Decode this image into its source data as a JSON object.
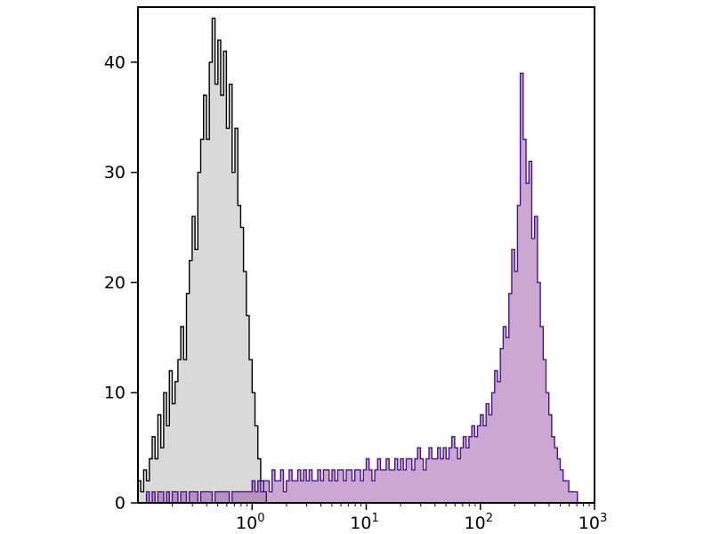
{
  "colors": {
    "background": "#ffffff",
    "axis": "#000000",
    "gray_series_stroke": "#000000",
    "gray_series_fill": "#d9d9d9",
    "purple_series_stroke": "#4a1190",
    "purple_series_fill": "#8b3f9b"
  },
  "chart_data": {
    "type": "area",
    "subtype": "flow-cytometry-overlay-histogram",
    "title": "",
    "xlabel": "",
    "ylabel": "",
    "x_scale": "log10",
    "x_range_log10": [
      -1,
      3
    ],
    "y_range": [
      0,
      45
    ],
    "grid": false,
    "legend": "none",
    "bins": {
      "start_log10": -1,
      "step_log10": 0.025,
      "count": 160
    },
    "x_ticks": [
      {
        "log10": 0,
        "label_base": "10",
        "label_exp": "0"
      },
      {
        "log10": 1,
        "label_base": "10",
        "label_exp": "1"
      },
      {
        "log10": 2,
        "label_base": "10",
        "label_exp": "2"
      },
      {
        "log10": 3,
        "label_base": "10",
        "label_exp": "3"
      }
    ],
    "y_ticks": [
      {
        "value": 0,
        "label": "0"
      },
      {
        "value": 10,
        "label": "10"
      },
      {
        "value": 20,
        "label": "20"
      },
      {
        "value": 30,
        "label": "30"
      },
      {
        "value": 40,
        "label": "40"
      }
    ],
    "series": [
      {
        "id": "gray",
        "name": "gray-filled histogram (black outline), peak ~0.45 at count 44",
        "stroke": "#000000",
        "fill": "#d9d9d9",
        "fill_opacity": 1,
        "values": [
          2,
          1,
          3,
          2,
          4,
          6,
          4,
          8,
          5,
          10,
          7,
          12,
          9,
          11,
          13,
          16,
          13,
          19,
          22,
          26,
          23,
          30,
          33,
          37,
          33,
          40,
          44,
          38,
          42,
          37,
          41,
          34,
          38,
          30,
          34,
          27,
          25,
          21,
          17,
          13,
          10,
          7,
          4,
          2,
          1,
          0,
          0,
          0,
          0,
          0,
          0,
          0,
          0,
          0,
          0,
          0,
          0,
          0,
          0,
          0,
          0,
          0,
          0,
          0,
          0,
          0,
          0,
          0,
          0,
          0,
          0,
          0,
          0,
          0,
          0,
          0,
          0,
          0,
          0,
          0,
          0,
          0,
          0,
          0,
          0,
          0,
          0,
          0,
          0,
          0,
          0,
          0,
          0,
          0,
          0,
          0,
          0,
          0,
          0,
          0,
          0,
          0,
          0,
          0,
          0,
          0,
          0,
          0,
          0,
          0,
          0,
          0,
          0,
          0,
          0,
          0,
          0,
          0,
          0,
          0,
          0,
          0,
          0,
          0,
          0,
          0,
          0,
          0,
          0,
          0,
          0,
          0,
          0,
          0,
          0,
          0,
          0,
          0,
          0,
          0,
          0,
          0,
          0,
          0,
          0,
          0,
          0,
          0,
          0,
          0,
          0,
          0,
          0,
          0,
          0,
          0,
          0,
          0,
          0,
          0
        ]
      },
      {
        "id": "purple",
        "name": "purple-filled histogram (violet outline), peak ~225 at count 39",
        "stroke": "#4a1190",
        "fill": "#8b3f9b",
        "fill_opacity": 0.45,
        "values": [
          0,
          0,
          0,
          1,
          0,
          1,
          0,
          1,
          1,
          0,
          1,
          0,
          1,
          1,
          0,
          1,
          1,
          0,
          1,
          1,
          1,
          0,
          1,
          1,
          1,
          1,
          0,
          1,
          1,
          1,
          1,
          1,
          0,
          1,
          1,
          1,
          1,
          1,
          1,
          1,
          2,
          1,
          2,
          1,
          2,
          2,
          1,
          3,
          2,
          2,
          3,
          1,
          2,
          3,
          2,
          2,
          3,
          2,
          3,
          2,
          3,
          2,
          2,
          3,
          2,
          3,
          3,
          2,
          3,
          2,
          3,
          3,
          2,
          3,
          3,
          2,
          3,
          3,
          2,
          3,
          4,
          3,
          2,
          3,
          4,
          3,
          3,
          4,
          3,
          3,
          4,
          3,
          4,
          3,
          4,
          4,
          3,
          4,
          5,
          4,
          3,
          4,
          5,
          4,
          4,
          5,
          4,
          5,
          4,
          5,
          6,
          5,
          4,
          5,
          6,
          5,
          6,
          7,
          6,
          7,
          8,
          7,
          9,
          8,
          10,
          12,
          11,
          14,
          16,
          15,
          19,
          23,
          21,
          27,
          39,
          33,
          29,
          31,
          24,
          26,
          20,
          16,
          13,
          10,
          8,
          6,
          5,
          4,
          3,
          2,
          2,
          1,
          1,
          1,
          0,
          0,
          0,
          0,
          0,
          0
        ]
      }
    ]
  }
}
